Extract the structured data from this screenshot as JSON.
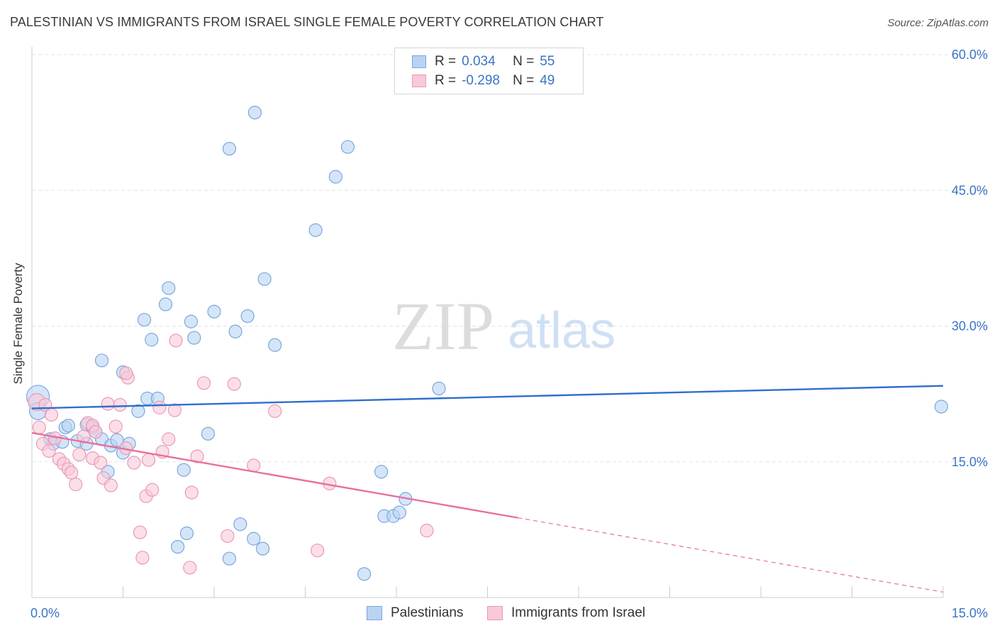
{
  "title": "PALESTINIAN VS IMMIGRANTS FROM ISRAEL SINGLE FEMALE POVERTY CORRELATION CHART",
  "source": "Source: ZipAtlas.com",
  "watermark": {
    "zip": "ZIP",
    "atlas": "atlas"
  },
  "legend": {
    "rows": [
      {
        "r_label": "R =",
        "r_value": "0.034",
        "n_label": "N =",
        "n_value": "55"
      },
      {
        "r_label": "R =",
        "r_value": "-0.298",
        "n_label": "N =",
        "n_value": "49"
      }
    ]
  },
  "bottom_legend": {
    "series1": "Palestinians",
    "series2": "Immigrants from Israel"
  },
  "colors": {
    "blue_fill": "#b9d3f3",
    "blue_stroke": "#7aa7de",
    "blue_line": "#2f6fcc",
    "pink_fill": "#f8c9d8",
    "pink_stroke": "#ec98b4",
    "pink_line": "#e8709a",
    "axis_text": "#3b74c5",
    "grid": "#e3e3e3"
  },
  "chart_data": {
    "type": "scatter",
    "xlabel": "",
    "ylabel": "Single Female Poverty",
    "xlim": [
      0,
      15
    ],
    "ylim": [
      0,
      60
    ],
    "x_tick_labels": [
      "0.0%",
      "15.0%"
    ],
    "y_ticks": [
      15,
      30,
      45,
      60
    ],
    "y_tick_labels": [
      "15.0%",
      "30.0%",
      "45.0%",
      "60.0%"
    ],
    "grid": true,
    "legend_position": "top-center",
    "series": [
      {
        "name": "Palestinians",
        "r": 0.034,
        "n": 55,
        "trend": {
          "x": [
            0,
            15
          ],
          "y": [
            20.9,
            23.4
          ],
          "dashed_from": null
        },
        "points": [
          [
            0.1,
            22.2,
            "big"
          ],
          [
            0.1,
            20.6,
            "mid"
          ],
          [
            0.3,
            17.5
          ],
          [
            0.35,
            17
          ],
          [
            0.55,
            18.8
          ],
          [
            0.5,
            17.2
          ],
          [
            0.6,
            19.0
          ],
          [
            0.75,
            17.3
          ],
          [
            0.9,
            19.1
          ],
          [
            0.9,
            17.0
          ],
          [
            1.0,
            18.8
          ],
          [
            1.05,
            18.3
          ],
          [
            1.15,
            17.5
          ],
          [
            1.15,
            26.2
          ],
          [
            1.25,
            13.9
          ],
          [
            1.3,
            16.8
          ],
          [
            1.4,
            17.4
          ],
          [
            1.5,
            16.0
          ],
          [
            1.5,
            24.9
          ],
          [
            1.6,
            17.0
          ],
          [
            1.75,
            20.6
          ],
          [
            1.85,
            30.7
          ],
          [
            1.9,
            22.0
          ],
          [
            1.97,
            28.5
          ],
          [
            2.07,
            22.0
          ],
          [
            2.2,
            32.4
          ],
          [
            2.25,
            34.2
          ],
          [
            2.4,
            5.6
          ],
          [
            2.5,
            14.1
          ],
          [
            2.55,
            7.1
          ],
          [
            2.62,
            30.5
          ],
          [
            2.67,
            28.7
          ],
          [
            2.9,
            18.1
          ],
          [
            3.0,
            31.6
          ],
          [
            3.25,
            4.3
          ],
          [
            3.25,
            49.6
          ],
          [
            3.35,
            29.4
          ],
          [
            3.43,
            8.1
          ],
          [
            3.55,
            31.1
          ],
          [
            3.65,
            6.5
          ],
          [
            3.67,
            53.6
          ],
          [
            3.8,
            5.4
          ],
          [
            3.83,
            35.2
          ],
          [
            4.0,
            27.9
          ],
          [
            4.67,
            40.6
          ],
          [
            5.0,
            46.5
          ],
          [
            5.2,
            49.8
          ],
          [
            5.47,
            2.6
          ],
          [
            5.75,
            13.9
          ],
          [
            5.8,
            9.0
          ],
          [
            5.95,
            9.0
          ],
          [
            6.05,
            9.4
          ],
          [
            6.15,
            10.9
          ],
          [
            6.7,
            23.1
          ],
          [
            14.97,
            21.1
          ]
        ]
      },
      {
        "name": "Immigrants from Israel",
        "r": -0.298,
        "n": 49,
        "trend": {
          "x": [
            0,
            15
          ],
          "y": [
            18.2,
            0.6
          ],
          "dashed_from": 8.0
        },
        "points": [
          [
            0.08,
            21.6,
            "mid"
          ],
          [
            0.12,
            18.8
          ],
          [
            0.18,
            17.0
          ],
          [
            0.22,
            21.3
          ],
          [
            0.28,
            16.2
          ],
          [
            0.32,
            20.2
          ],
          [
            0.38,
            17.6
          ],
          [
            0.45,
            15.3
          ],
          [
            0.52,
            14.8
          ],
          [
            0.6,
            14.2
          ],
          [
            0.65,
            13.8
          ],
          [
            0.72,
            12.5
          ],
          [
            0.78,
            15.8
          ],
          [
            0.85,
            17.8
          ],
          [
            0.92,
            19.3
          ],
          [
            1.0,
            19.0
          ],
          [
            1.0,
            15.4
          ],
          [
            1.05,
            18.3
          ],
          [
            1.13,
            14.9
          ],
          [
            1.18,
            13.2
          ],
          [
            1.25,
            21.4
          ],
          [
            1.3,
            12.4
          ],
          [
            1.38,
            18.9
          ],
          [
            1.45,
            21.3
          ],
          [
            1.55,
            16.5
          ],
          [
            1.58,
            24.3
          ],
          [
            1.68,
            14.9
          ],
          [
            1.78,
            7.2
          ],
          [
            1.82,
            4.4
          ],
          [
            1.88,
            11.2
          ],
          [
            1.92,
            15.2
          ],
          [
            1.98,
            11.9
          ],
          [
            2.1,
            21.0
          ],
          [
            2.15,
            16.1
          ],
          [
            2.25,
            17.5
          ],
          [
            2.35,
            20.7
          ],
          [
            2.37,
            28.4
          ],
          [
            2.6,
            3.3
          ],
          [
            2.63,
            11.6
          ],
          [
            2.72,
            15.6
          ],
          [
            2.83,
            23.7
          ],
          [
            3.22,
            6.8
          ],
          [
            3.33,
            23.6
          ],
          [
            3.65,
            14.6
          ],
          [
            4.0,
            20.6
          ],
          [
            4.7,
            5.2
          ],
          [
            4.9,
            12.6
          ],
          [
            6.5,
            7.4
          ],
          [
            1.55,
            24.8
          ]
        ]
      }
    ]
  }
}
